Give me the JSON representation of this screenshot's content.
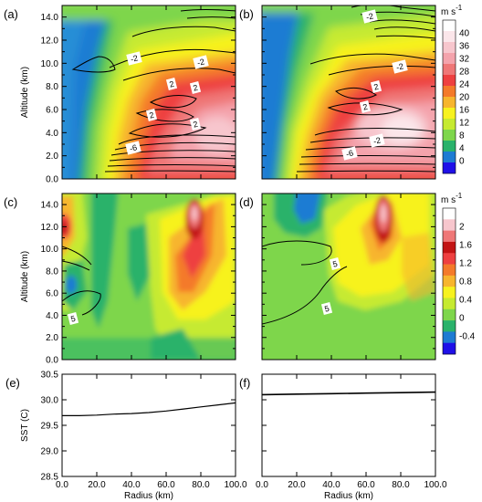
{
  "chart_data": [
    {
      "type": "heatmap",
      "panel": "(a)",
      "ylabel": "Altitude (km)",
      "ylim": [
        0,
        15
      ],
      "xlim": [
        0,
        100
      ],
      "y_ticks": [
        "0.0",
        "2.0",
        "4.0",
        "6.0",
        "8.0",
        "10.0",
        "12.0",
        "14.0"
      ],
      "contour_labels": [
        "-2",
        "-2",
        "2",
        "2",
        "2",
        "2",
        "-6"
      ]
    },
    {
      "type": "heatmap",
      "panel": "(b)",
      "ylim": [
        0,
        15
      ],
      "xlim": [
        0,
        100
      ],
      "contour_labels": [
        "-2",
        "-2",
        "2",
        "2",
        "-2",
        "-6"
      ]
    },
    {
      "type": "heatmap",
      "panel": "(c)",
      "ylabel": "Altitude (km)",
      "ylim": [
        0,
        15
      ],
      "xlim": [
        0,
        100
      ],
      "y_ticks": [
        "0.0",
        "2.0",
        "4.0",
        "6.0",
        "8.0",
        "10.0",
        "12.0",
        "14.0"
      ],
      "contour_labels": [
        "5"
      ]
    },
    {
      "type": "heatmap",
      "panel": "(d)",
      "ylim": [
        0,
        15
      ],
      "xlim": [
        0,
        100
      ],
      "contour_labels": [
        "5",
        "5"
      ]
    },
    {
      "type": "line",
      "panel": "(e)",
      "ylabel": "SST (C)",
      "xlabel": "Radius (km)",
      "ylim": [
        28.5,
        30.5
      ],
      "xlim": [
        0,
        100
      ],
      "y_ticks": [
        "28.5",
        "29.0",
        "29.5",
        "30.0",
        "30.5"
      ],
      "x_ticks": [
        "0.0",
        "20.0",
        "40.0",
        "60.0",
        "80.0",
        "100.0"
      ],
      "series": [
        {
          "x": [
            0,
            10,
            20,
            30,
            40,
            50,
            60,
            70,
            80,
            90,
            100
          ],
          "y": [
            29.69,
            29.69,
            29.7,
            29.72,
            29.73,
            29.75,
            29.78,
            29.82,
            29.86,
            29.9,
            29.94
          ]
        }
      ]
    },
    {
      "type": "line",
      "panel": "(f)",
      "xlabel": "Radius (km)",
      "ylim": [
        28.5,
        30.5
      ],
      "xlim": [
        0,
        100
      ],
      "x_ticks": [
        "0.0",
        "20.0",
        "40.0",
        "60.0",
        "80.0",
        "100.0"
      ],
      "series": [
        {
          "x": [
            0,
            20,
            40,
            60,
            80,
            100
          ],
          "y": [
            30.1,
            30.11,
            30.12,
            30.13,
            30.14,
            30.15
          ]
        }
      ]
    }
  ],
  "colorbars": [
    {
      "unit_main": "m s",
      "unit_exp": "-1",
      "labels": [
        "40",
        "36",
        "32",
        "28",
        "24",
        "20",
        "16",
        "12",
        "8",
        "4",
        "0"
      ],
      "colors": [
        "#ffffff",
        "#fbe6ea",
        "#f7c6cd",
        "#f4a3ac",
        "#ef7777",
        "#ee4040",
        "#f47a2a",
        "#f7b52e",
        "#f7f21f",
        "#c6ea30",
        "#7ed64c",
        "#2ab26b",
        "#1e7bd3",
        "#1f10e8"
      ]
    },
    {
      "unit_main": "m s",
      "unit_exp": "-1",
      "labels": [
        "2",
        "1.6",
        "1.2",
        "0.8",
        "0.4",
        "0",
        "-0.4"
      ],
      "colors": [
        "#ffffff",
        "#f7c6cd",
        "#ef7777",
        "#c21414",
        "#ee4040",
        "#f47a2a",
        "#f7b52e",
        "#f7f21f",
        "#c6ea30",
        "#7ed64c",
        "#2ab26b",
        "#1e7bd3",
        "#1f10e8"
      ]
    }
  ]
}
